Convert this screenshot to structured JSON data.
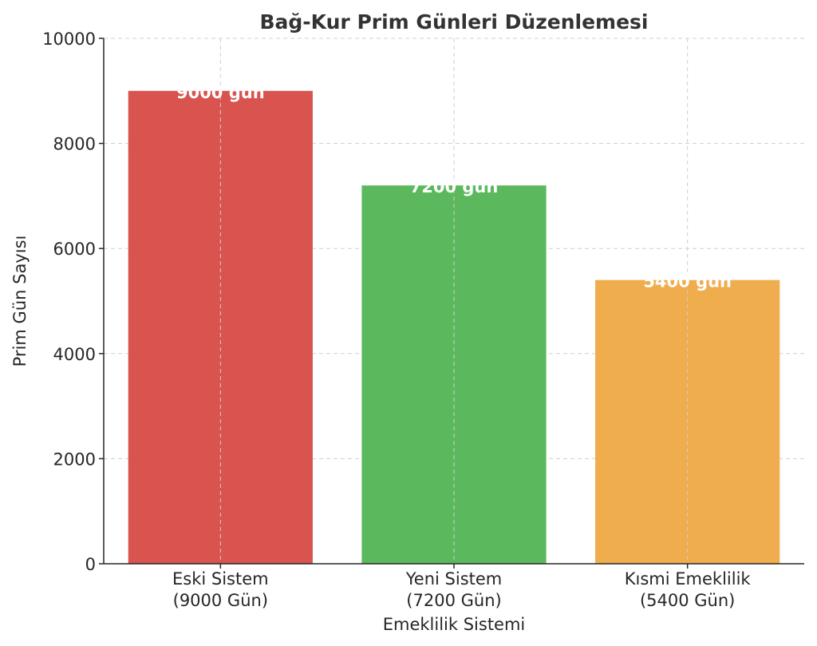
{
  "chart_data": {
    "type": "bar",
    "title": "Bağ-Kur Prim Günleri Düzenlemesi",
    "xlabel": "Emeklilik Sistemi",
    "ylabel": "Prim Gün Sayısı",
    "categories": [
      [
        "Eski Sistem",
        "(9000 Gün)"
      ],
      [
        "Yeni Sistem",
        "(7200 Gün)"
      ],
      [
        "Kısmi Emeklilik",
        "(5400 Gün)"
      ]
    ],
    "values": [
      9000,
      7200,
      5400
    ],
    "data_labels": [
      "9000 gün",
      "7200 gün",
      "5400 gün"
    ],
    "colors": [
      "#d9534f",
      "#5cb85c",
      "#f0ad4e"
    ],
    "ylim": [
      0,
      10000
    ],
    "yticks": [
      0,
      2000,
      4000,
      6000,
      8000,
      10000
    ],
    "grid": true
  }
}
